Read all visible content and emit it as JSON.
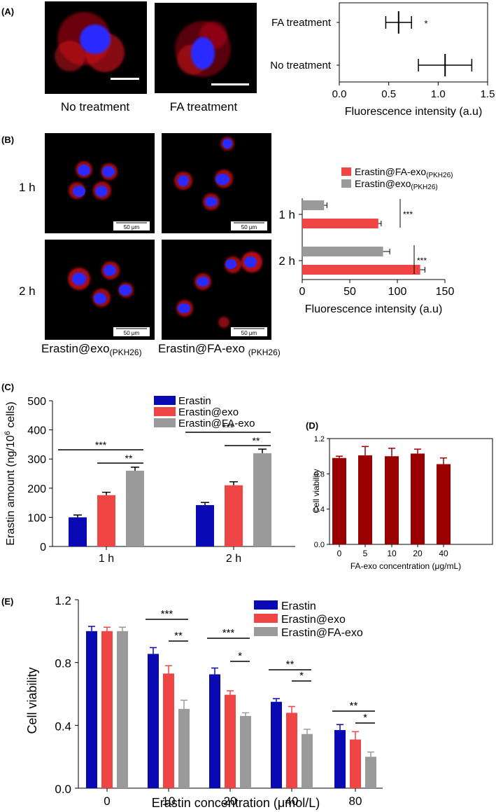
{
  "colors": {
    "blue": "#0a0ab4",
    "red": "#f04545",
    "gray": "#9a9a9a",
    "dark_red": "#9b0000",
    "nucleus": "#2a2aff",
    "stain": "#ff1a1a"
  },
  "panels": {
    "a": {
      "label": "(A)",
      "image_captions": [
        "No treatment",
        "FA treatment"
      ]
    },
    "b": {
      "label": "(B)",
      "row_labels": [
        "1 h",
        "2 h"
      ],
      "scale_bar_label": "50 μm",
      "col_caption_1_main": "Erastin@exo",
      "col_caption_1_sub": "(PKH26)",
      "col_caption_2_main": "Erastin@FA-exo ",
      "col_caption_2_sub": "(PKH26)"
    },
    "c": {
      "label": "(C)"
    },
    "d": {
      "label": "(D)"
    },
    "e": {
      "label": "(E)"
    }
  },
  "chart_data": [
    {
      "id": "A",
      "type": "bar",
      "orientation": "horizontal",
      "style": "mean-with-errorbar",
      "categories": [
        "FA treatment",
        "No treatment"
      ],
      "values": [
        0.6,
        1.07
      ],
      "errors": [
        0.13,
        0.27
      ],
      "significance": [
        "*",
        ""
      ],
      "xlabel": "Fluorescence intensity (a.u)",
      "xlim": [
        0,
        1.5
      ],
      "xticks": [
        "0.0",
        "0.5",
        "1.0",
        "1.5"
      ]
    },
    {
      "id": "B",
      "type": "bar",
      "orientation": "horizontal",
      "categories": [
        "1 h",
        "2 h"
      ],
      "series": [
        {
          "name": "Erastin@FA-exo",
          "name_sub": "(PKH26)",
          "color": "red",
          "values": [
            80,
            124
          ],
          "errors": [
            3,
            5
          ]
        },
        {
          "name": "Erastin@exo",
          "name_sub": "(PKH26)",
          "color": "gray",
          "values": [
            23,
            85
          ],
          "errors": [
            3,
            7
          ]
        }
      ],
      "significance": [
        "***",
        "***"
      ],
      "xlabel": "Fluorescence intensity (a.u)",
      "xlim": [
        0,
        150
      ],
      "xticks": [
        "0",
        "50",
        "100",
        "150"
      ]
    },
    {
      "id": "C",
      "type": "bar",
      "categories": [
        "1 h",
        "2 h"
      ],
      "series": [
        {
          "name": "Erastin",
          "color": "blue",
          "values": [
            100,
            142
          ],
          "errors": [
            8,
            9
          ]
        },
        {
          "name": "Erastin@exo",
          "color": "red",
          "values": [
            176,
            210
          ],
          "errors": [
            10,
            12
          ]
        },
        {
          "name": "Erastin@FA-exo",
          "color": "gray",
          "values": [
            260,
            320
          ],
          "errors": [
            12,
            14
          ]
        }
      ],
      "significance": [
        {
          "group": "1 h",
          "from": "Erastin",
          "to": "Erastin@FA-exo",
          "label": "***"
        },
        {
          "group": "1 h",
          "from": "Erastin@exo",
          "to": "Erastin@FA-exo",
          "label": "**"
        },
        {
          "group": "2 h",
          "from": "Erastin",
          "to": "Erastin@FA-exo",
          "label": "***"
        },
        {
          "group": "2 h",
          "from": "Erastin@exo",
          "to": "Erastin@FA-exo",
          "label": "**"
        }
      ],
      "ylabel_main": "Erastin amount (ng/10",
      "ylabel_sup": "6",
      "ylabel_end": " cells)",
      "ylim": [
        0,
        500
      ],
      "yticks": [
        "0",
        "100",
        "200",
        "300",
        "400",
        "500"
      ]
    },
    {
      "id": "D",
      "type": "bar",
      "categories": [
        "0",
        "5",
        "10",
        "20",
        "40"
      ],
      "values": [
        0.98,
        1.01,
        1.0,
        1.03,
        0.91
      ],
      "errors": [
        0.02,
        0.1,
        0.09,
        0.05,
        0.07
      ],
      "color": "dark_red",
      "xlabel": "FA-exo concentration (μg/mL)",
      "ylabel": "Cell viability",
      "ylim": [
        0,
        1.2
      ],
      "yticks": [
        "0.0",
        "0.4",
        "0.8",
        "1.2"
      ]
    },
    {
      "id": "E",
      "type": "bar",
      "categories": [
        "0",
        "10",
        "20",
        "40",
        "80"
      ],
      "series": [
        {
          "name": "Erastin",
          "color": "blue",
          "values": [
            1.0,
            0.855,
            0.725,
            0.55,
            0.37
          ],
          "errors": [
            0.03,
            0.04,
            0.04,
            0.02,
            0.035
          ]
        },
        {
          "name": "Erastin@exo",
          "color": "red",
          "values": [
            1.0,
            0.73,
            0.595,
            0.48,
            0.31
          ],
          "errors": [
            0.025,
            0.05,
            0.025,
            0.04,
            0.05
          ]
        },
        {
          "name": "Erastin@FA-exo",
          "color": "gray",
          "values": [
            1.0,
            0.505,
            0.46,
            0.345,
            0.2
          ],
          "errors": [
            0.025,
            0.055,
            0.02,
            0.03,
            0.03
          ]
        }
      ],
      "significance": [
        {
          "group": "10",
          "from": "Erastin",
          "to": "Erastin@FA-exo",
          "label": "***"
        },
        {
          "group": "10",
          "from": "Erastin@exo",
          "to": "Erastin@FA-exo",
          "label": "**"
        },
        {
          "group": "20",
          "from": "Erastin",
          "to": "Erastin@FA-exo",
          "label": "***"
        },
        {
          "group": "20",
          "from": "Erastin@exo",
          "to": "Erastin@FA-exo",
          "label": "*"
        },
        {
          "group": "40",
          "from": "Erastin",
          "to": "Erastin@FA-exo",
          "label": "**"
        },
        {
          "group": "40",
          "from": "Erastin@exo",
          "to": "Erastin@FA-exo",
          "label": "*"
        },
        {
          "group": "80",
          "from": "Erastin",
          "to": "Erastin@FA-exo",
          "label": "**"
        },
        {
          "group": "80",
          "from": "Erastin@exo",
          "to": "Erastin@FA-exo",
          "label": "*"
        }
      ],
      "xlabel": "Erastin concentration (μmol/L)",
      "ylabel": "Cell viability",
      "ylim": [
        0,
        1.2
      ],
      "yticks": [
        "0.0",
        "0.4",
        "0.8",
        "1.2"
      ]
    }
  ]
}
